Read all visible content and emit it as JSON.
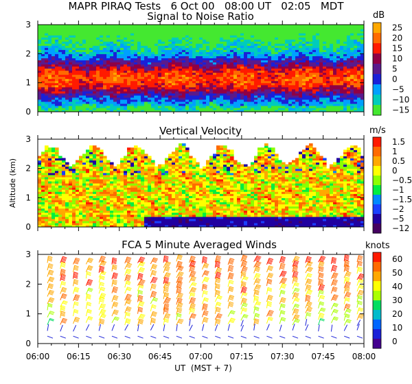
{
  "header": {
    "line": "MAPR PIRAQ Tests   6 Oct 00   08:00 UT   02:05   MDT"
  },
  "x_axis": {
    "ticks": [
      "06:00",
      "06:15",
      "06:30",
      "06:45",
      "07:00",
      "07:15",
      "07:30",
      "07:45",
      "08:00"
    ],
    "label": "UT  (MST + 7)"
  },
  "chart_data": [
    {
      "type": "heatmap",
      "title": "Signal to Noise Ratio",
      "ylabel": "",
      "ylim": [
        0,
        3
      ],
      "yticks": [
        "0",
        "1",
        "2",
        "3"
      ],
      "colorbar": {
        "unit": "dB",
        "labels": [
          "25",
          "20",
          "15",
          "10",
          "5",
          "0",
          "−5",
          "−10",
          "−15"
        ],
        "colors": [
          "#ffa800",
          "#ff6a00",
          "#ff1a00",
          "#900045",
          "#5a1a8c",
          "#1a20d8",
          "#00a0ff",
          "#00ccbb",
          "#44e830"
        ]
      },
      "pattern": "High SNR (10-20 dB, red/orange) concentrated between 0.5 and 2 km; low SNR (-10 to -15 dB, green) above about 2.5 km and scattered near the ground."
    },
    {
      "type": "heatmap",
      "title": "Vertical Velocity",
      "ylabel": "Altitude (km)",
      "ylim": [
        0,
        3
      ],
      "yticks": [
        "0",
        "1",
        "2",
        "3"
      ],
      "colorbar": {
        "unit": "m/s",
        "labels": [
          "1.5",
          "1",
          "0.5",
          "0",
          "−0.5",
          "−1",
          "−1.5",
          "−2",
          "−5",
          "−12"
        ],
        "colors": [
          "#ff1a00",
          "#ff6a00",
          "#ffa800",
          "#ffff00",
          "#8cff00",
          "#00ee40",
          "#0088ff",
          "#1a40ff",
          "#2000a0",
          "#440060"
        ]
      },
      "pattern": "Mostly near-zero velocities (yellow/green) from 0 to 2.5 km, with negative speckles; strong negative velocities (dark purple) near the ground after 06:45; white (no data) above about 2.5 km."
    },
    {
      "type": "scatter",
      "subtype": "wind-barbs",
      "title": "FCA 5 Minute Averaged Winds",
      "ylabel": "",
      "ylim": [
        0,
        3
      ],
      "yticks": [
        "0",
        "1",
        "2",
        "3"
      ],
      "colorbar": {
        "unit": "knots",
        "labels": [
          "60",
          "50",
          "40",
          "30",
          "20",
          "10",
          "0"
        ],
        "colors": [
          "#ff1a00",
          "#ff6a00",
          "#ffa800",
          "#ffff00",
          "#aaff00",
          "#00dd60",
          "#00bbcc",
          "#0066ff",
          "#1a20d8",
          "#440090"
        ]
      },
      "pattern": "Wind barbs every 5 minutes from 0.2 to 2.9 km; speeds mostly 25-45 knots (green/yellow/orange) aloft, weaker (5-15 knots, blue/purple) below 0.5 km."
    }
  ]
}
